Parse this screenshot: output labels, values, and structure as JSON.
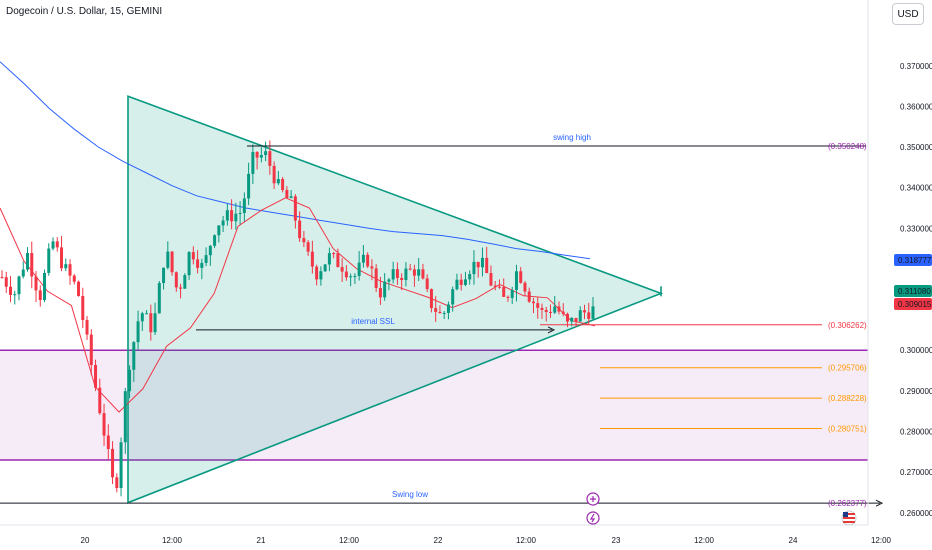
{
  "header": {
    "symbol_title": "Dogecoin / U.S. Dollar, 15, GEMINI",
    "currency_button": "USD"
  },
  "chart_data": {
    "type": "candlestick",
    "title": "Dogecoin / U.S. Dollar, 15, GEMINI",
    "y_ticks": [
      "0.370000",
      "0.360000",
      "0.350000",
      "0.340000",
      "0.330000",
      "0.300000",
      "0.290000",
      "0.280000",
      "0.270000",
      "0.260000"
    ],
    "x_ticks": [
      "20",
      "12:00",
      "21",
      "12:00",
      "22",
      "12:00",
      "23",
      "12:00",
      "24",
      "12:00"
    ],
    "ylim": [
      0.257,
      0.382
    ],
    "price_tags": [
      {
        "value": 0.318777,
        "label": "0.318777",
        "color": "#2962ff"
      },
      {
        "value": 0.31108,
        "label": "0.311080",
        "color": "#089981"
      },
      {
        "value": 0.309015,
        "label": "0.309015",
        "color": "#f23645"
      }
    ],
    "annotations": [
      {
        "label": "swing high",
        "value": 0.350248,
        "value_label": "(0.350248)",
        "color": "#131722"
      },
      {
        "label": "internal SSL",
        "value": 0.305,
        "color": "#131722"
      },
      {
        "label": "Swing low",
        "value": 0.262377,
        "value_label": "(0.262377)",
        "color": "#131722"
      }
    ],
    "levels": [
      {
        "value": 0.306262,
        "label": "(0.306262)",
        "color": "#f23645"
      },
      {
        "value": 0.295706,
        "label": "(0.295706)",
        "color": "#ff9800"
      },
      {
        "value": 0.288228,
        "label": "(0.288228)",
        "color": "#ff9800"
      },
      {
        "value": 0.280751,
        "label": "(0.280751)",
        "color": "#ff9800"
      }
    ],
    "demand_zone": {
      "top": 0.3,
      "bottom": 0.273,
      "color": "#9c27b0"
    },
    "triangle": {
      "top_start": 0.3625,
      "bottom_start": 0.2625,
      "apex": 0.314
    },
    "series": [
      {
        "name": "",
        "kind": "moving-average",
        "color": "#2962ff",
        "values": [
          0.371,
          0.3655,
          0.3595,
          0.3545,
          0.35,
          0.3465,
          0.3435,
          0.3405,
          0.338,
          0.3365,
          0.335,
          0.334,
          0.333,
          0.332,
          0.331,
          0.33,
          0.3292,
          0.3287,
          0.3282,
          0.3273,
          0.3262,
          0.325,
          0.3243,
          0.3234,
          0.3225
        ]
      },
      {
        "name": "",
        "kind": "moving-average",
        "color": "#f23645",
        "values": [
          0.335,
          0.322,
          0.3145,
          0.311,
          0.291,
          0.2848,
          0.2905,
          0.301,
          0.3055,
          0.314,
          0.3305,
          0.3345,
          0.3375,
          0.335,
          0.325,
          0.32,
          0.317,
          0.315,
          0.313,
          0.3105,
          0.3127,
          0.3162,
          0.3134,
          0.3129,
          0.3073,
          0.306
        ]
      },
      {
        "name": "",
        "kind": "price",
        "color": "#089981",
        "values": [
          0.318,
          0.314,
          0.324,
          0.313,
          0.327,
          0.32,
          0.315,
          0.298,
          0.282,
          0.264,
          0.295,
          0.31,
          0.305,
          0.325,
          0.314,
          0.325,
          0.32,
          0.331,
          0.333,
          0.334,
          0.3475,
          0.348,
          0.34,
          0.336,
          0.325,
          0.319,
          0.323,
          0.321,
          0.318,
          0.323,
          0.314,
          0.318,
          0.319,
          0.32,
          0.312,
          0.308,
          0.316,
          0.32,
          0.322,
          0.316,
          0.312,
          0.32,
          0.313,
          0.309,
          0.311,
          0.306,
          0.309,
          0.31
        ]
      }
    ]
  }
}
